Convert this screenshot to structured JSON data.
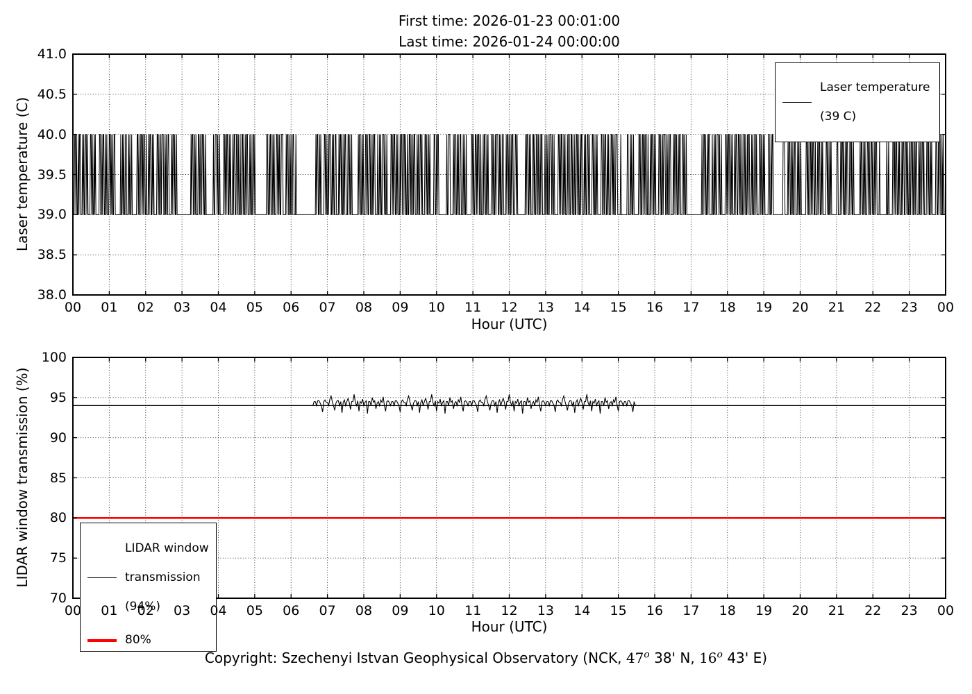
{
  "figure": {
    "title_line1": "First time: 2026-01-23 00:01:00",
    "title_line2": "Last time: 2026-01-24 00:00:00",
    "background": "#ffffff",
    "line_color": "#000000",
    "threshold_color": "#ff0000"
  },
  "copyright": {
    "prefix": "Copyright: Szechenyi Istvan Geophysical Observatory (NCK, ",
    "lat_value": "47",
    "lat_sup": "o",
    "lat_rest": " 38' N, ",
    "lon_value": "16",
    "lon_sup": "o",
    "lon_rest": " 43' E)"
  },
  "chart_data": [
    {
      "type": "line",
      "id": "laser-temperature",
      "xlabel": "Hour (UTC)",
      "ylabel": "Laser temperature (C)",
      "ylim": [
        38.0,
        41.0
      ],
      "xlim_hours": [
        0,
        24
      ],
      "grid": "dotted",
      "yticks": [
        38.0,
        38.5,
        39.0,
        39.5,
        40.0,
        40.5,
        41.0
      ],
      "ytick_labels": [
        "38.0",
        "38.5",
        "39.0",
        "39.5",
        "40.0",
        "40.5",
        "41.0"
      ],
      "xtick_labels": [
        "00",
        "01",
        "02",
        "03",
        "04",
        "05",
        "06",
        "07",
        "08",
        "09",
        "10",
        "11",
        "12",
        "13",
        "14",
        "15",
        "16",
        "17",
        "18",
        "19",
        "20",
        "21",
        "22",
        "23",
        "00"
      ],
      "legend": {
        "position": "upper right",
        "entries": [
          {
            "label_line1": "Laser temperature",
            "label_line2": "(39 C)",
            "color": "#000000"
          }
        ]
      },
      "series": {
        "name": "Laser temperature",
        "color": "#000000",
        "description": "Per-minute laser temperature toggling between 39 C and 40 C over 24 h (square-pulse barcode pattern), baseline 39 C",
        "baseline_c": 39,
        "pulse_c": 40,
        "start_minute": 1,
        "end_minute": 1440,
        "sample_interval_min": 1,
        "run_lengths_min": [
          2,
          2,
          1,
          1,
          2,
          1,
          1,
          2,
          3,
          1,
          1,
          1,
          2,
          2,
          1,
          1,
          4,
          2,
          1,
          1,
          2,
          1,
          1,
          1,
          6,
          2,
          2,
          1,
          1,
          2,
          2,
          1,
          1,
          1,
          3,
          2,
          1,
          1,
          1,
          1,
          2,
          3,
          5,
          1,
          1,
          2,
          2,
          1,
          1,
          1,
          2,
          2,
          3,
          1,
          1,
          1,
          2,
          1,
          8,
          2,
          1,
          1,
          2,
          2,
          1,
          1,
          1,
          2,
          2,
          1,
          3,
          1,
          1,
          2,
          2,
          1,
          1,
          1,
          5,
          2,
          1,
          1,
          2,
          1,
          1,
          3,
          2,
          1,
          1,
          1,
          2,
          2,
          4,
          1,
          1,
          2,
          1,
          1,
          2,
          1,
          1,
          2,
          3,
          2,
          1,
          1,
          2,
          1,
          10,
          1,
          1,
          2,
          2,
          1,
          1,
          1,
          3,
          2,
          1,
          1,
          2,
          2,
          1,
          1,
          2,
          1,
          1,
          2,
          4,
          1,
          2,
          1,
          1,
          1,
          2,
          3,
          1,
          1,
          2,
          1,
          6,
          2,
          1,
          1,
          1,
          2,
          2,
          1,
          1,
          1,
          3,
          1,
          1,
          2,
          2,
          2,
          1,
          1,
          2,
          1
        ],
        "quiet_intervals_min": [
          [
            70,
            78
          ],
          [
            172,
            186
          ],
          [
            220,
            231
          ],
          [
            302,
            314
          ],
          [
            370,
            400
          ],
          [
            604,
            616
          ],
          [
            736,
            744
          ],
          [
            905,
            913
          ],
          [
            1022,
            1036
          ],
          [
            1158,
            1170
          ],
          [
            1252,
            1259
          ],
          [
            1334,
            1342
          ]
        ]
      }
    },
    {
      "type": "line",
      "id": "lidar-window-transmission",
      "xlabel": "Hour (UTC)",
      "ylabel": "LIDAR window transmission (%)",
      "ylim": [
        70,
        100
      ],
      "xlim_hours": [
        0,
        24
      ],
      "grid": "dotted",
      "yticks": [
        70,
        75,
        80,
        85,
        90,
        95,
        100
      ],
      "ytick_labels": [
        "70",
        "75",
        "80",
        "85",
        "90",
        "95",
        "100"
      ],
      "xtick_labels": [
        "00",
        "01",
        "02",
        "03",
        "04",
        "05",
        "06",
        "07",
        "08",
        "09",
        "10",
        "11",
        "12",
        "13",
        "14",
        "15",
        "16",
        "17",
        "18",
        "19",
        "20",
        "21",
        "22",
        "23",
        "00"
      ],
      "legend": {
        "position": "lower left",
        "entries": [
          {
            "label_line1": "LIDAR window",
            "label_line2": "transmission",
            "label_line3": "(94%)",
            "color": "#000000"
          },
          {
            "label_line1": "80%",
            "color": "#ff0000"
          }
        ]
      },
      "series": [
        {
          "name": "LIDAR window transmission",
          "color": "#000000",
          "baseline_pct": 94,
          "description": "Constant 94% across 24 h with a noisy measured section between ~06:38 and ~15:26 fluctuating ~93-95.5%",
          "noisy_window_min": [
            398,
            926
          ],
          "noise_sample_min": 2,
          "noise_values_pct": [
            94.5,
            94.5,
            94.0,
            94.6,
            94.6,
            94.3,
            94.0,
            93.2,
            94.5,
            94.7,
            94.4,
            94.4,
            94.0,
            94.8,
            95.2,
            94.5,
            94.0,
            93.4,
            94.3,
            94.6,
            94.6,
            94.0,
            94.5,
            93.1,
            94.4,
            94.7,
            94.0,
            94.5,
            94.9,
            94.4,
            93.5,
            94.5,
            94.5,
            95.4,
            94.4,
            94.0,
            94.6,
            93.3,
            94.5,
            94.3,
            94.8,
            94.0,
            94.4,
            94.6,
            93.0,
            94.5,
            94.5,
            94.0,
            95.0,
            94.4,
            94.6,
            93.6,
            94.3,
            94.5,
            94.0,
            94.7,
            94.4,
            95.1,
            94.0,
            93.3,
            94.5,
            94.6,
            94.4,
            94.0
          ]
        },
        {
          "name": "80% threshold",
          "color": "#ff0000",
          "value_pct": 80
        }
      ]
    }
  ]
}
